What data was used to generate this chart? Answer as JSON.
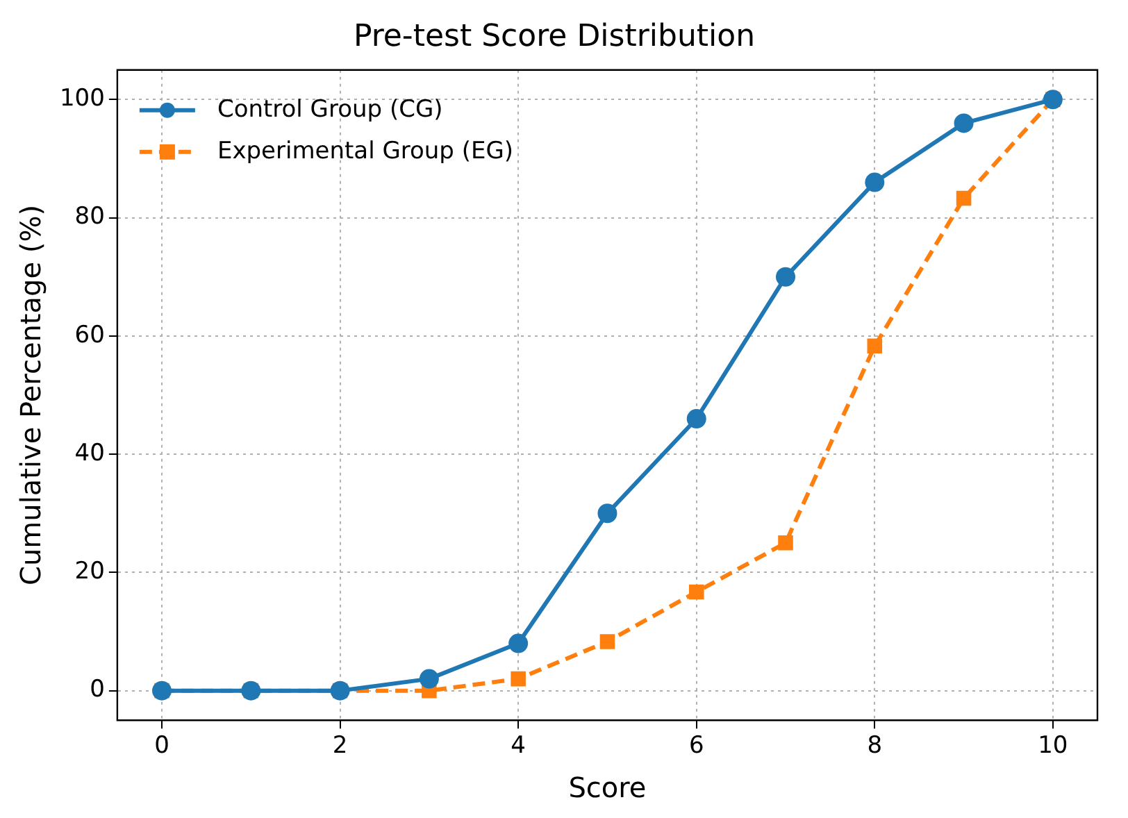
{
  "chart_data": {
    "type": "line",
    "title": "Pre-test Score Distribution",
    "xlabel": "Score",
    "ylabel": "Cumulative Percentage (%)",
    "x": [
      0,
      1,
      2,
      3,
      4,
      5,
      6,
      7,
      8,
      9,
      10
    ],
    "series": [
      {
        "name": "Control Group (CG)",
        "color": "#1f77b4",
        "marker": "circle",
        "line_style": "solid",
        "values": [
          0,
          0,
          0,
          2,
          8,
          30,
          46,
          70,
          86,
          96,
          100
        ]
      },
      {
        "name": "Experimental Group (EG)",
        "color": "#ff7f0e",
        "marker": "square",
        "line_style": "dashed",
        "values": [
          0,
          0,
          0,
          0,
          2,
          8.3,
          16.7,
          25,
          58.3,
          83.3,
          100
        ]
      }
    ],
    "xlim": [
      -0.5,
      10.5
    ],
    "xticks": [
      0,
      2,
      4,
      6,
      8,
      10
    ],
    "ylim": [
      -5,
      105
    ],
    "yticks": [
      0,
      20,
      40,
      60,
      80,
      100
    ],
    "grid": true,
    "legend": "top left"
  }
}
